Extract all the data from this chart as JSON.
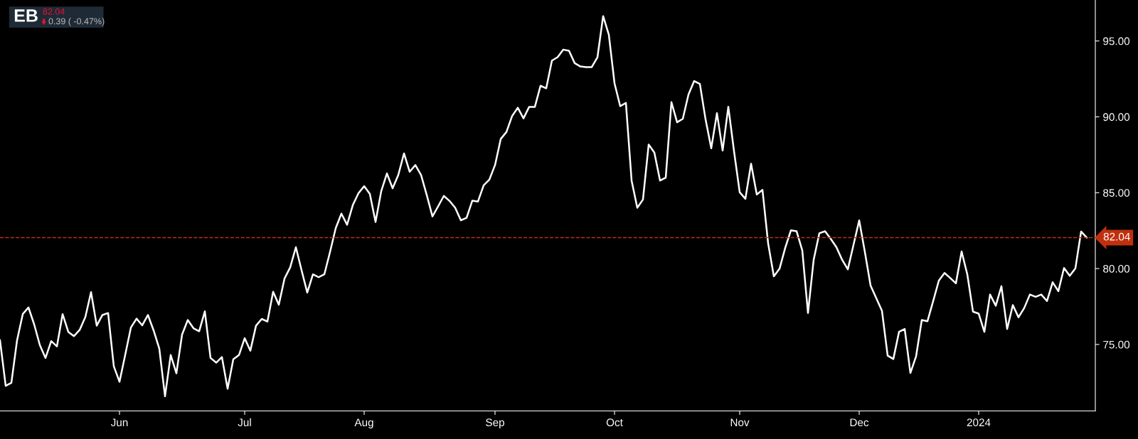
{
  "chart_data": {
    "type": "line",
    "title": "EB",
    "annotations": [
      "82.04",
      "0.39 ( -0.47%)"
    ],
    "categories": [
      null,
      null,
      null,
      null,
      null,
      null,
      null,
      null,
      null,
      null,
      null,
      null,
      null,
      null,
      null,
      null,
      null,
      null,
      null,
      null,
      null,
      "Jun",
      null,
      null,
      null,
      null,
      null,
      null,
      null,
      null,
      null,
      null,
      null,
      null,
      null,
      null,
      null,
      null,
      null,
      null,
      null,
      null,
      null,
      "Jul",
      null,
      null,
      null,
      null,
      null,
      null,
      null,
      null,
      null,
      null,
      null,
      null,
      null,
      null,
      null,
      null,
      null,
      null,
      null,
      null,
      "Aug",
      null,
      null,
      null,
      null,
      null,
      null,
      null,
      null,
      null,
      null,
      null,
      null,
      null,
      null,
      null,
      null,
      null,
      null,
      null,
      null,
      null,
      null,
      "Sep",
      null,
      null,
      null,
      null,
      null,
      null,
      null,
      null,
      null,
      null,
      null,
      null,
      null,
      null,
      null,
      null,
      null,
      null,
      null,
      null,
      "Oct",
      null,
      null,
      null,
      null,
      null,
      null,
      null,
      null,
      null,
      null,
      null,
      null,
      null,
      null,
      null,
      null,
      null,
      null,
      null,
      null,
      null,
      "Nov",
      null,
      null,
      null,
      null,
      null,
      null,
      null,
      null,
      null,
      null,
      null,
      null,
      null,
      null,
      null,
      null,
      null,
      null,
      null,
      null,
      "Dec",
      null,
      null,
      null,
      null,
      null,
      null,
      null,
      null,
      null,
      null,
      null,
      null,
      null,
      null,
      null,
      null,
      null,
      null,
      null,
      null,
      "2024",
      null,
      null,
      null,
      null,
      null,
      null,
      null,
      null,
      null,
      null,
      null,
      null,
      null,
      null,
      null,
      null,
      null,
      null,
      null
    ],
    "series": [
      {
        "color": "#ffffff",
        "values": [
          75.28,
          72.27,
          72.47,
          75.28,
          77.0,
          77.44,
          76.33,
          74.96,
          74.11,
          75.22,
          74.87,
          77.0,
          75.83,
          75.55,
          75.96,
          76.81,
          78.45,
          76.24,
          76.94,
          77.07,
          73.56,
          72.54,
          74.3,
          76.11,
          76.7,
          76.26,
          76.94,
          75.92,
          74.72,
          71.58,
          74.3,
          73.1,
          75.65,
          76.61,
          76.07,
          75.87,
          77.18,
          74.11,
          73.8,
          74.17,
          72.08,
          74.02,
          74.3,
          75.41,
          74.59,
          76.24,
          76.68,
          76.51,
          78.47,
          77.62,
          79.34,
          80.08,
          81.41,
          79.89,
          78.42,
          79.62,
          79.43,
          79.62,
          81.09,
          82.66,
          83.62,
          82.89,
          84.18,
          84.97,
          85.43,
          84.92,
          83.07,
          85.1,
          86.27,
          85.29,
          86.17,
          87.59,
          86.38,
          86.82,
          86.17,
          84.84,
          83.44,
          84.1,
          84.79,
          84.46,
          84.01,
          83.18,
          83.35,
          84.47,
          84.42,
          85.49,
          85.86,
          86.82,
          88.54,
          89.0,
          90.05,
          90.6,
          89.9,
          90.66,
          90.66,
          92.05,
          91.88,
          93.71,
          93.93,
          94.43,
          94.35,
          93.54,
          93.32,
          93.28,
          93.28,
          93.93,
          96.64,
          95.41,
          92.21,
          90.7,
          90.92,
          85.8,
          84.01,
          84.55,
          88.17,
          87.65,
          85.8,
          85.99,
          90.97,
          89.64,
          89.87,
          91.47,
          92.36,
          92.17,
          89.83,
          87.93,
          90.24,
          87.78,
          90.66,
          87.74,
          85.03,
          84.6,
          86.91,
          84.88,
          85.19,
          81.65,
          79.49,
          79.99,
          81.37,
          82.52,
          82.46,
          81.19,
          77.07,
          80.58,
          82.33,
          82.46,
          81.96,
          81.41,
          80.58,
          79.95,
          81.56,
          83.18,
          81.09,
          78.88,
          78.05,
          77.22,
          74.26,
          74.04,
          75.83,
          76.02,
          73.12,
          74.22,
          76.61,
          76.53,
          77.86,
          79.21,
          79.71,
          79.38,
          79.03,
          81.13,
          79.62,
          77.16,
          77.03,
          75.83,
          78.29,
          77.55,
          78.84,
          76.02,
          77.59,
          76.79,
          77.4,
          78.29,
          78.14,
          78.29,
          77.86,
          79.1,
          78.51,
          80.04,
          79.52,
          80.02,
          82.44,
          82.04
        ]
      }
    ],
    "ylim": [
      70.62,
      97.7
    ],
    "yticks": [
      {
        "value": 75,
        "label": "75.00"
      },
      {
        "value": 80,
        "label": "80.00"
      },
      {
        "value": 85,
        "label": "85.00"
      },
      {
        "value": 90,
        "label": "90.00"
      },
      {
        "value": 95,
        "label": "95.00"
      }
    ],
    "ref_lines": [
      {
        "axis": "y",
        "value": 82.04,
        "label": "82.04",
        "color": "#c0300e",
        "line_style": "dashed"
      }
    ],
    "grid": false,
    "legend": false,
    "marker": "none",
    "line_style": "solid"
  }
}
